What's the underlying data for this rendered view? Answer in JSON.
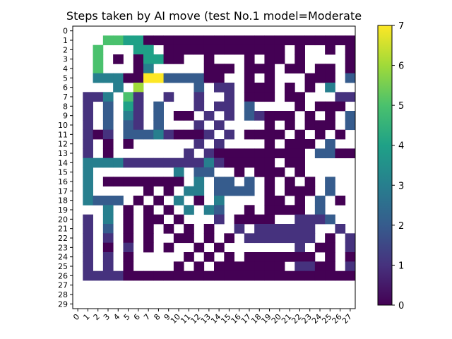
{
  "chart_data": {
    "type": "heatmap",
    "title": "Steps taken by AI move (test No.1 model=Moderate",
    "xlabel": "",
    "ylabel": "",
    "x_ticks": [
      0,
      1,
      2,
      3,
      4,
      5,
      6,
      7,
      8,
      9,
      10,
      11,
      12,
      13,
      14,
      15,
      16,
      17,
      18,
      19,
      20,
      21,
      22,
      23,
      24,
      25,
      26,
      27
    ],
    "y_ticks": [
      0,
      1,
      2,
      3,
      4,
      5,
      6,
      7,
      8,
      9,
      10,
      11,
      12,
      13,
      14,
      15,
      16,
      17,
      18,
      19,
      20,
      21,
      22,
      23,
      24,
      25,
      26,
      27,
      28,
      29
    ],
    "colorbar": {
      "min": 0,
      "max": 7,
      "ticks": [
        0,
        1,
        2,
        3,
        4,
        5,
        6,
        7
      ],
      "colormap": "viridis"
    },
    "legend": "colorbar-right",
    "legend_code": {
      "W": "white (no value)",
      "0": 0,
      "1": 1,
      "2": 2,
      "3": 3,
      "4": 4,
      "5": 5,
      "6": 6,
      "7": 7
    },
    "rows": [
      "WWWWWWWWWWWWWWWWWWWWWWWWWWWWW",
      "WWW5544000000000000000000000000",
      "WW5WWW44W000000000000W0WW0W0W00",
      "WW5W0W04400WW0WWW0W00W0WWWW0W0W0",
      "WW5WWW03WWWWW000W000W00W00W0W0",
      "WW3330077222200WW0W0WWW000W2W0",
      "WWWW3W6WWWWW2W11W000W0W0W3WWW",
      "W113W51WW1WW1WW1W000W00WWW115W22",
      "W1W2W41W2WWW1W11W2WWWW0W000W2",
      "W1W2W31W2W00W1W1W21000W0W0W2",
      "W1W2W21W2WWW1W1WWWW0W0W000W2",
      "W101W222310001W1W0000W0W0W0W2",
      "W1W0W0WWWWWW1W1WWWW0W000W2",
      "W1W0WWWWWWW1W1000000000W2200",
      "W3333111111113100000W00WWWW",
      "W3WWWWWWWW3W22WW0W000W0WW",
      "W3W00000000W3W22W2W0W0W0W2W",
      "W3WWWWW0W0W33W2222W0W000W2W",
      "W3222W0W0W3W0W3WWWW00W0W2W0",
      "WWW3W0W0W0W3W32WW0W0000W2W",
      "W1W3W0W00W0WWW1W0000WW1112",
      "W1W2W0W0W0W0W0WW1W111111WW1",
      "W1W1W0W0WW00W0W0W1111111W0W1",
      "W1W0W1W0W0WW0W0WWWWWWW1W00W1",
      "W1W1W0WWWWW0W0W0W0000000W0W0",
      "W1W1W0WWWW0W0W0000000W1100W11",
      "W1111000000000000000000000000001",
      "WWWWWWWWWWWWWWWWWWWWWWWWWWWWW",
      "WWWWWWWWWWWWWWWWWWWWWWWWWWWWW",
      "WWWWWWWWWWWWWWWWWWWWWWWWWWWWW"
    ]
  }
}
